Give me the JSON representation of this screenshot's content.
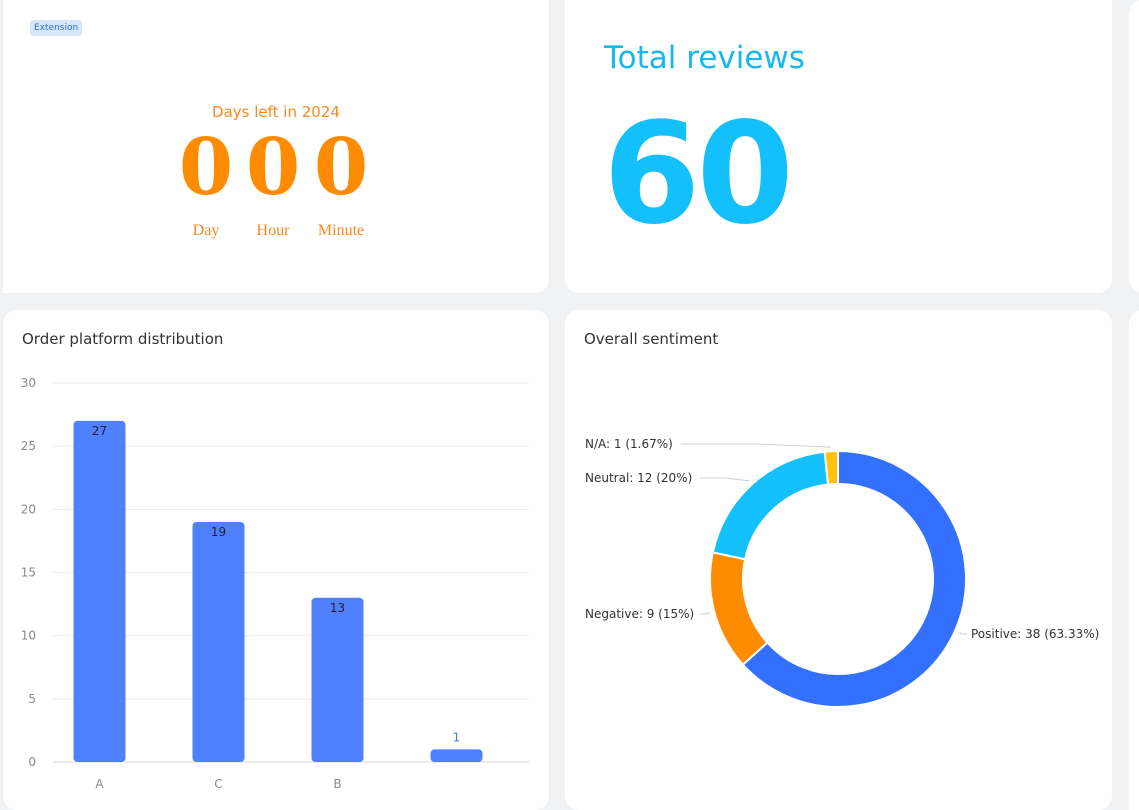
{
  "countdown": {
    "badge": "Extension",
    "title": "Days left in 2024",
    "units": [
      {
        "value": "0",
        "label": "Day"
      },
      {
        "value": "0",
        "label": "Hour"
      },
      {
        "value": "0",
        "label": "Minute"
      }
    ],
    "color": "#ff8c00"
  },
  "total_reviews": {
    "title": "Total reviews",
    "value": "60",
    "color": "#14c0fb"
  },
  "chart_data": [
    {
      "type": "bar",
      "title": "Order platform distribution",
      "categories": [
        "A",
        "C",
        "B",
        ""
      ],
      "values": [
        27,
        19,
        13,
        1
      ],
      "ylim": [
        0,
        30
      ],
      "yticks": [
        0,
        5,
        10,
        15,
        20,
        25,
        30
      ],
      "grid": true,
      "color": "#4f80ff"
    },
    {
      "type": "pie",
      "title": "Overall sentiment",
      "slices": [
        {
          "name": "Positive",
          "value": 38,
          "label": "Positive: 38 (63.33%)",
          "color": "#3470ff"
        },
        {
          "name": "Negative",
          "value": 9,
          "label": "Negative: 9 (15%)",
          "color": "#ff8c00"
        },
        {
          "name": "Neutral",
          "value": 12,
          "label": "Neutral: 12 (20%)",
          "color": "#14c0fb"
        },
        {
          "name": "N/A",
          "value": 1,
          "label": "N/A: 1 (1.67%)",
          "color": "#ffc20e"
        }
      ]
    }
  ]
}
